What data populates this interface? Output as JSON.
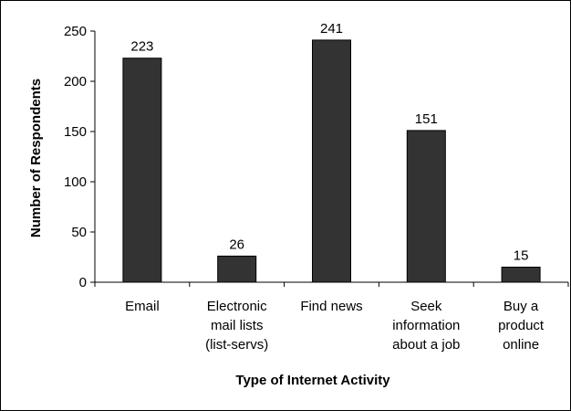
{
  "chart_data": {
    "type": "bar",
    "categories": [
      [
        "Email"
      ],
      [
        "Electronic",
        "mail lists",
        "(list-servs)"
      ],
      [
        "Find news"
      ],
      [
        "Seek",
        "information",
        "about a job"
      ],
      [
        "Buy a",
        "product",
        "online"
      ]
    ],
    "values": [
      223,
      26,
      241,
      151,
      15
    ],
    "data_labels": [
      "223",
      "26",
      "241",
      "151",
      "15"
    ],
    "xlabel": "Type of Internet Activity",
    "ylabel": "Number of Respondents",
    "ylim": [
      0,
      250
    ],
    "yticks": [
      "0",
      "50",
      "100",
      "150",
      "200",
      "250"
    ],
    "grid": false,
    "legend": "none",
    "bar_color": "#333333"
  }
}
